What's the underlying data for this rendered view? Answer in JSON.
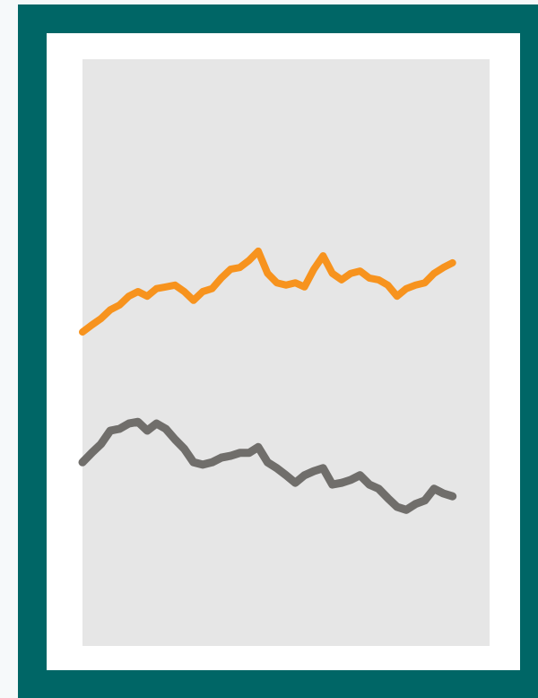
{
  "chart_data": {
    "type": "line",
    "x": [
      0,
      1,
      2,
      3,
      4,
      5,
      6,
      7,
      8,
      9,
      10,
      11,
      12,
      13,
      14,
      15,
      16,
      17,
      18,
      19,
      20,
      21,
      22,
      23,
      24,
      25,
      26,
      27,
      28,
      29,
      30,
      31,
      32,
      33,
      34,
      35,
      36,
      37,
      38,
      39,
      40
    ],
    "xlim": [
      0,
      44
    ],
    "ylim": [
      0,
      100
    ],
    "series": [
      {
        "color": "#f7931e",
        "values": [
          53.5,
          54.7,
          55.8,
          57.3,
          58.1,
          59.6,
          60.4,
          59.6,
          60.9,
          61.2,
          61.5,
          60.4,
          58.9,
          60.4,
          60.9,
          62.7,
          64.2,
          64.5,
          65.7,
          67.3,
          63.5,
          61.9,
          61.5,
          61.9,
          61.2,
          64.2,
          66.5,
          63.5,
          62.4,
          63.5,
          63.9,
          62.7,
          62.4,
          61.5,
          59.6,
          60.9,
          61.5,
          61.9,
          63.5,
          64.5,
          65.3
        ]
      },
      {
        "color": "#706e6b",
        "values": [
          31.3,
          32.9,
          34.4,
          36.7,
          37.0,
          37.9,
          38.2,
          36.7,
          37.9,
          37.0,
          35.2,
          33.6,
          31.3,
          30.9,
          31.3,
          32.1,
          32.4,
          32.9,
          32.9,
          33.9,
          31.3,
          30.3,
          29.1,
          27.8,
          29.1,
          29.8,
          30.3,
          27.5,
          27.8,
          28.3,
          29.1,
          27.5,
          26.8,
          25.2,
          23.7,
          23.2,
          24.2,
          24.8,
          26.8,
          26.0,
          25.5
        ]
      }
    ]
  }
}
